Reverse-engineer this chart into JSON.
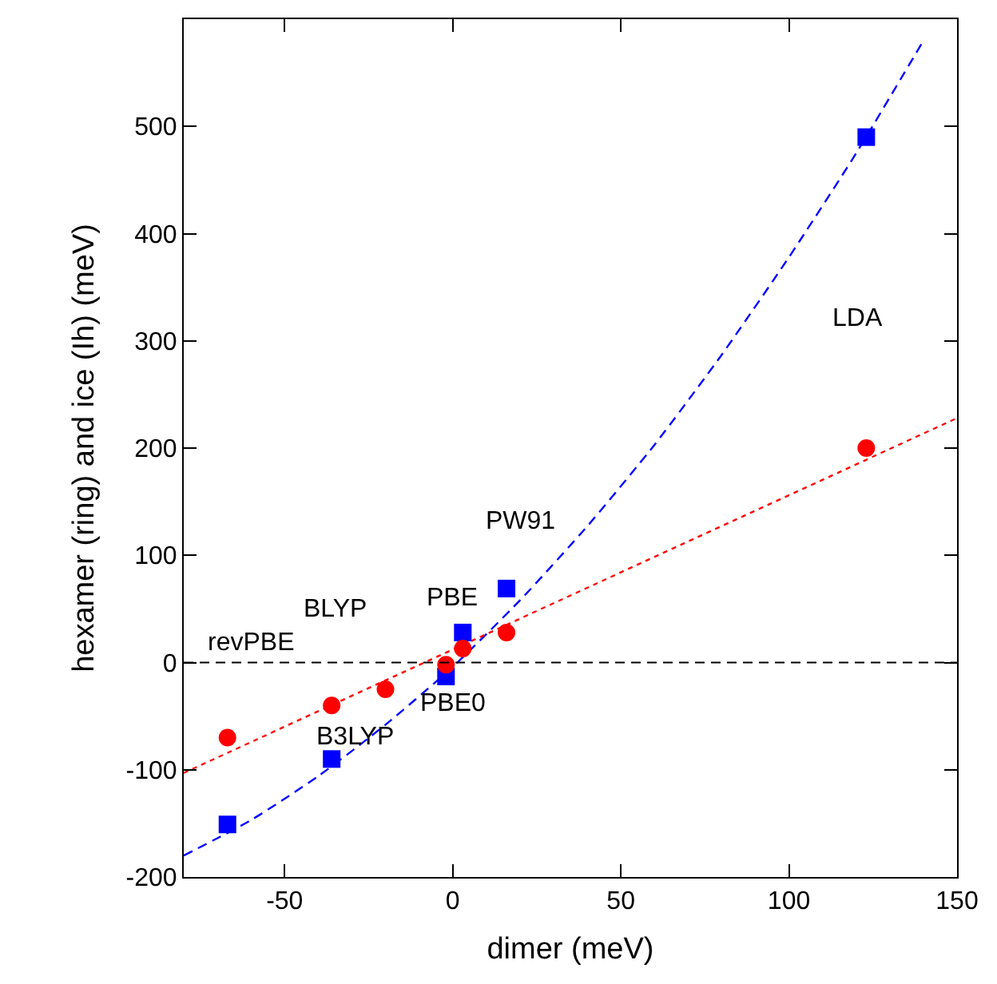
{
  "chart_data": {
    "type": "scatter",
    "xlabel": "dimer (meV)",
    "ylabel": "hexamer (ring) and ice (Ih) (meV)",
    "xlim": [
      -80,
      150
    ],
    "ylim": [
      -200,
      600
    ],
    "xticks": [
      -50,
      0,
      50,
      100,
      150
    ],
    "yticks": [
      -200,
      -100,
      0,
      100,
      200,
      300,
      400,
      500
    ],
    "grid": false,
    "series": [
      {
        "type": "line",
        "color": "#0000ff",
        "line_style": "dashed",
        "marker": "none",
        "x": [
          -80,
          -60,
          -40,
          -20,
          0,
          20,
          40,
          60,
          80,
          100,
          120,
          140
        ],
        "values": [
          -180,
          -147,
          -106,
          -58,
          -4,
          58,
          127,
          203,
          287,
          378,
          475,
          580
        ]
      },
      {
        "type": "line",
        "color": "#ff0000",
        "line_style": "dotted",
        "marker": "none",
        "x": [
          -80,
          150
        ],
        "values": [
          -103,
          228
        ]
      },
      {
        "color": "#0000ff",
        "marker": "square",
        "x": [
          -67,
          -36,
          -2,
          3,
          16,
          123
        ],
        "values": [
          -151,
          -90,
          -13,
          28,
          69,
          490
        ]
      },
      {
        "color": "#ff0000",
        "marker": "circle",
        "x": [
          -67,
          -36,
          -20,
          -2,
          3,
          16,
          123
        ],
        "values": [
          -70,
          -40,
          -25,
          -2,
          13,
          28,
          200
        ]
      }
    ],
    "ref_lines": [
      {
        "axis": "y",
        "value": 0,
        "color": "#000000",
        "line_style": "dashed"
      }
    ],
    "annotations": [
      "LDA",
      "PW91",
      "PBE",
      "BLYP",
      "revPBE",
      "PBE0",
      "B3LYP"
    ]
  }
}
